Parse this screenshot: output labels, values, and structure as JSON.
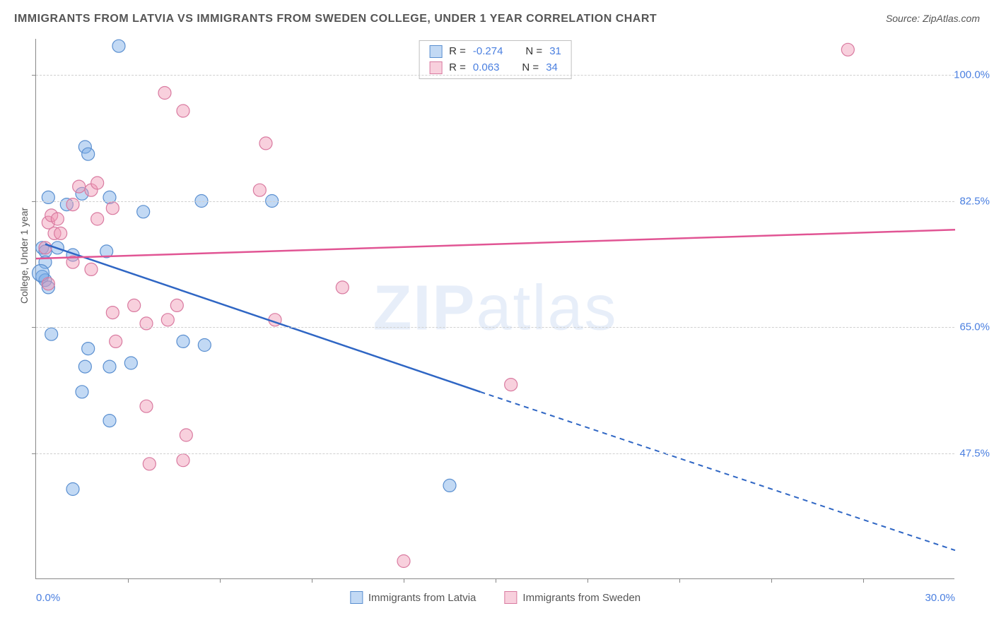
{
  "title": "IMMIGRANTS FROM LATVIA VS IMMIGRANTS FROM SWEDEN COLLEGE, UNDER 1 YEAR CORRELATION CHART",
  "source": "Source: ZipAtlas.com",
  "watermark_bold": "ZIP",
  "watermark_rest": "atlas",
  "y_axis_label": "College, Under 1 year",
  "chart": {
    "type": "scatter",
    "background_color": "#ffffff",
    "grid_color": "#d0d0d0",
    "axis_color": "#888888",
    "xlim": [
      0,
      30
    ],
    "ylim": [
      30,
      105
    ],
    "x_ticks_shown": [
      0,
      30
    ],
    "x_tick_labels": [
      "0.0%",
      "30.0%"
    ],
    "x_minor_ticks": [
      3,
      6,
      9,
      12,
      15,
      18,
      21,
      24,
      27
    ],
    "y_ticks": [
      47.5,
      65.0,
      82.5,
      100.0
    ],
    "y_tick_labels": [
      "47.5%",
      "65.0%",
      "82.5%",
      "100.0%"
    ],
    "series": [
      {
        "name": "Immigrants from Latvia",
        "color_fill": "rgba(120,170,230,0.45)",
        "color_stroke": "#5a8fd0",
        "swatch_fill": "rgba(120,170,230,0.45)",
        "swatch_border": "#5a8fd0",
        "marker_radius": 9,
        "R": "-0.274",
        "N": "31",
        "trend_color": "#2f66c4",
        "trend_start": {
          "x": 0.3,
          "y": 76.5
        },
        "trend_solid_end": {
          "x": 14.5,
          "y": 56
        },
        "trend_dash_end": {
          "x": 30,
          "y": 34
        },
        "points": [
          {
            "x": 0.2,
            "y": 76
          },
          {
            "x": 0.3,
            "y": 75.5
          },
          {
            "x": 0.3,
            "y": 74
          },
          {
            "x": 0.2,
            "y": 72
          },
          {
            "x": 0.3,
            "y": 71.5
          },
          {
            "x": 0.4,
            "y": 70.5
          },
          {
            "x": 0.4,
            "y": 83
          },
          {
            "x": 1.0,
            "y": 82
          },
          {
            "x": 1.6,
            "y": 90
          },
          {
            "x": 1.7,
            "y": 89
          },
          {
            "x": 2.7,
            "y": 104
          },
          {
            "x": 1.5,
            "y": 83.5
          },
          {
            "x": 2.4,
            "y": 83
          },
          {
            "x": 3.5,
            "y": 81
          },
          {
            "x": 5.4,
            "y": 82.5
          },
          {
            "x": 7.7,
            "y": 82.5
          },
          {
            "x": 2.3,
            "y": 75.5
          },
          {
            "x": 0.5,
            "y": 64
          },
          {
            "x": 1.7,
            "y": 62
          },
          {
            "x": 1.6,
            "y": 59.5
          },
          {
            "x": 2.4,
            "y": 59.5
          },
          {
            "x": 3.1,
            "y": 60
          },
          {
            "x": 1.5,
            "y": 56
          },
          {
            "x": 2.4,
            "y": 52
          },
          {
            "x": 4.8,
            "y": 63
          },
          {
            "x": 5.5,
            "y": 62.5
          },
          {
            "x": 1.2,
            "y": 42.5
          },
          {
            "x": 13.5,
            "y": 43
          },
          {
            "x": 0.15,
            "y": 72.5,
            "r": 12
          },
          {
            "x": 0.7,
            "y": 76
          },
          {
            "x": 1.2,
            "y": 75
          }
        ]
      },
      {
        "name": "Immigrants from Sweden",
        "color_fill": "rgba(240,150,180,0.45)",
        "color_stroke": "#d97aa0",
        "swatch_fill": "rgba(240,150,180,0.45)",
        "swatch_border": "#d97aa0",
        "marker_radius": 9,
        "R": "0.063",
        "N": "34",
        "trend_color": "#e15594",
        "trend_start": {
          "x": 0,
          "y": 74.5
        },
        "trend_solid_end": {
          "x": 30,
          "y": 78.5
        },
        "points": [
          {
            "x": 0.4,
            "y": 79.5
          },
          {
            "x": 0.5,
            "y": 80.5
          },
          {
            "x": 0.7,
            "y": 80
          },
          {
            "x": 0.6,
            "y": 78
          },
          {
            "x": 1.2,
            "y": 82
          },
          {
            "x": 1.4,
            "y": 84.5
          },
          {
            "x": 1.8,
            "y": 84
          },
          {
            "x": 2.0,
            "y": 85
          },
          {
            "x": 2.5,
            "y": 81.5
          },
          {
            "x": 2.0,
            "y": 80
          },
          {
            "x": 4.2,
            "y": 97.5
          },
          {
            "x": 4.8,
            "y": 95
          },
          {
            "x": 7.5,
            "y": 90.5
          },
          {
            "x": 7.3,
            "y": 84
          },
          {
            "x": 1.2,
            "y": 74
          },
          {
            "x": 1.8,
            "y": 73
          },
          {
            "x": 0.4,
            "y": 71
          },
          {
            "x": 2.5,
            "y": 67
          },
          {
            "x": 3.2,
            "y": 68
          },
          {
            "x": 2.6,
            "y": 63
          },
          {
            "x": 3.6,
            "y": 65.5
          },
          {
            "x": 4.3,
            "y": 66
          },
          {
            "x": 4.6,
            "y": 68
          },
          {
            "x": 7.8,
            "y": 66
          },
          {
            "x": 10.0,
            "y": 70.5
          },
          {
            "x": 3.6,
            "y": 54
          },
          {
            "x": 4.9,
            "y": 50
          },
          {
            "x": 4.8,
            "y": 46.5
          },
          {
            "x": 3.7,
            "y": 46
          },
          {
            "x": 12.0,
            "y": 32.5
          },
          {
            "x": 15.5,
            "y": 57
          },
          {
            "x": 26.5,
            "y": 103.5
          },
          {
            "x": 0.3,
            "y": 76
          },
          {
            "x": 0.8,
            "y": 78
          }
        ]
      }
    ],
    "title_fontsize": 16,
    "label_fontsize": 14,
    "tick_fontsize": 15
  },
  "legend": {
    "r_label": "R =",
    "n_label": "N ="
  }
}
